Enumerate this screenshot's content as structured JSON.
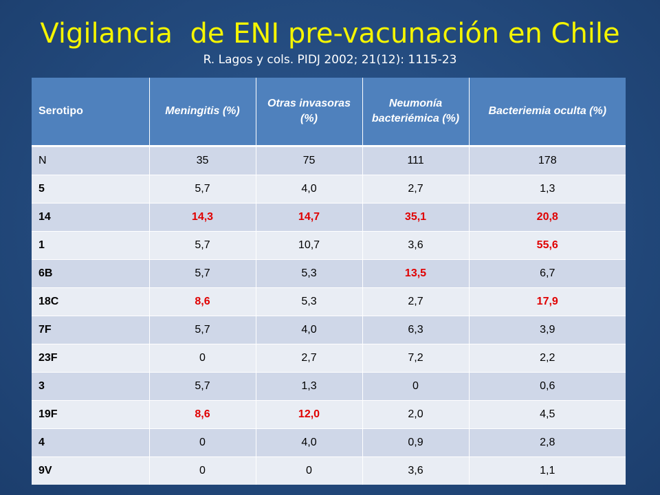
{
  "title": "Vigilancia  de ENI pre-vacunación en Chile",
  "subtitle": "R. Lagos y cols. PIDJ 2002; 21(12): 1115-23",
  "headers": [
    "Serotipo",
    "Meningitis (%)",
    "Otras invasoras (%)",
    "Neumonía bacteriémica (%)",
    "Bacteriemia oculta (%)"
  ],
  "rows": [
    {
      "serotype": "N",
      "values": [
        "35",
        "75",
        "111",
        "178"
      ],
      "highlight": [
        false,
        false,
        false,
        false
      ]
    },
    {
      "serotype": "5",
      "values": [
        "5,7",
        "4,0",
        "2,7",
        "1,3"
      ],
      "highlight": [
        false,
        false,
        false,
        false
      ]
    },
    {
      "serotype": "14",
      "values": [
        "14,3",
        "14,7",
        "35,1",
        "20,8"
      ],
      "highlight": [
        true,
        true,
        true,
        true
      ]
    },
    {
      "serotype": "1",
      "values": [
        "5,7",
        "10,7",
        "3,6",
        "55,6"
      ],
      "highlight": [
        false,
        false,
        false,
        true
      ]
    },
    {
      "serotype": "6B",
      "values": [
        "5,7",
        "5,3",
        "13,5",
        "6,7"
      ],
      "highlight": [
        false,
        false,
        true,
        false
      ]
    },
    {
      "serotype": "18C",
      "values": [
        "8,6",
        "5,3",
        "2,7",
        "17,9"
      ],
      "highlight": [
        true,
        false,
        false,
        true
      ]
    },
    {
      "serotype": "7F",
      "values": [
        "5,7",
        "4,0",
        "6,3",
        "3,9"
      ],
      "highlight": [
        false,
        false,
        false,
        false
      ]
    },
    {
      "serotype": "23F",
      "values": [
        "0",
        "2,7",
        "7,2",
        "2,2"
      ],
      "highlight": [
        false,
        false,
        false,
        false
      ]
    },
    {
      "serotype": "3",
      "values": [
        "5,7",
        "1,3",
        "0",
        "0,6"
      ],
      "highlight": [
        false,
        false,
        false,
        false
      ]
    },
    {
      "serotype": "19F",
      "values": [
        "8,6",
        "12,0",
        "2,0",
        "4,5"
      ],
      "highlight": [
        true,
        true,
        false,
        false
      ]
    },
    {
      "serotype": "4",
      "values": [
        "0",
        "4,0",
        "0,9",
        "2,8"
      ],
      "highlight": [
        false,
        false,
        false,
        false
      ]
    },
    {
      "serotype": "9V",
      "values": [
        "0",
        "0",
        "3,6",
        "1,1"
      ],
      "highlight": [
        false,
        false,
        false,
        false
      ]
    }
  ],
  "colors": {
    "title": "#f5f500",
    "header_bg": "#4f81bd",
    "row_odd": "#cfd7e8",
    "row_even": "#e9edf4",
    "highlight": "#e00000"
  }
}
